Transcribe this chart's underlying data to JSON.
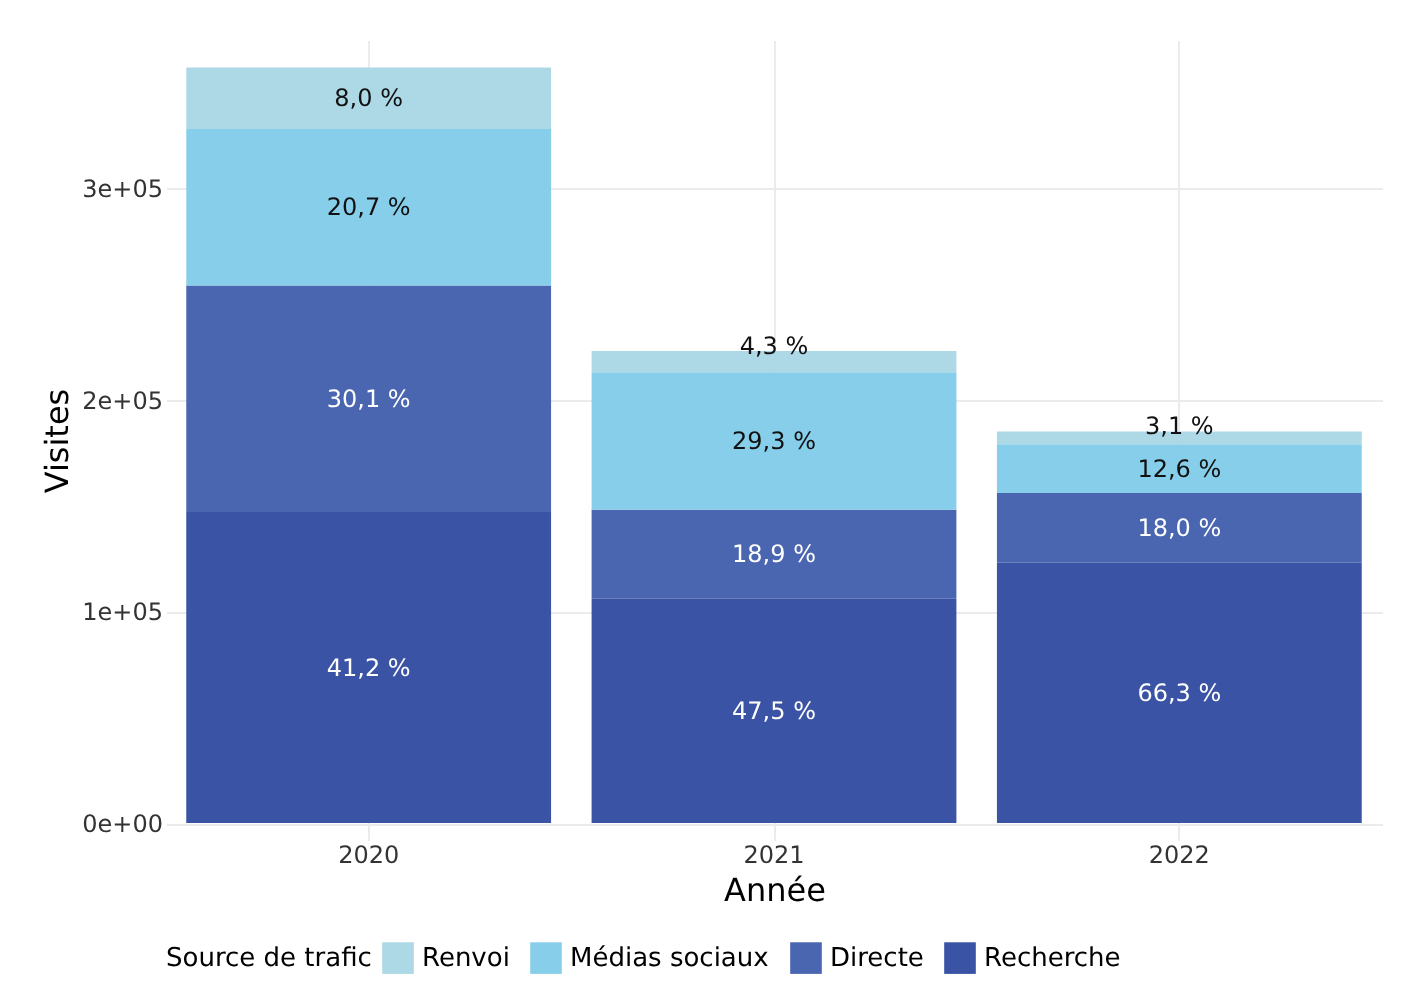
{
  "chart_data": {
    "type": "bar",
    "stacked": true,
    "xlabel": "Année",
    "ylabel": "Visites",
    "legend_title": "Source de trafic",
    "categories": [
      "2020",
      "2021",
      "2022"
    ],
    "series": [
      {
        "name": "Recherche",
        "color": "#3a53a4",
        "values": [
          147000,
          106000,
          123000
        ]
      },
      {
        "name": "Directe",
        "color": "#4a66b0",
        "values": [
          107000,
          42000,
          33000
        ]
      },
      {
        "name": "Médias sociaux",
        "color": "#87ceeb",
        "values": [
          74000,
          65000,
          23000
        ]
      },
      {
        "name": "Renvoi",
        "color": "#add8e6",
        "values": [
          29000,
          10000,
          6000
        ]
      }
    ],
    "annotations": [
      "41,2 %",
      "30,1 %",
      "20,7 %",
      "8,0 %",
      "47,5 %",
      "18,9 %",
      "29,3 %",
      "4,3 %",
      "66,3 %",
      "18,0 %",
      "12,6 %",
      "3,1 %"
    ],
    "ylim": [
      -8000,
      370000
    ],
    "yticks": [
      {
        "value": 0,
        "label": "0e+00"
      },
      {
        "value": 100000,
        "label": "1e+05"
      },
      {
        "value": 200000,
        "label": "2e+05"
      },
      {
        "value": 300000,
        "label": "3e+05"
      }
    ],
    "grid": true,
    "legend": "bottom"
  }
}
